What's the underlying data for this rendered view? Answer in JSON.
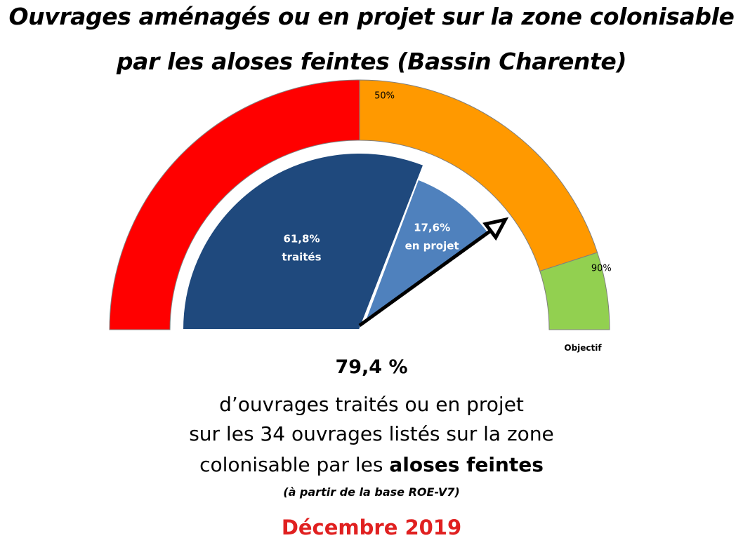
{
  "title_line1": "Ouvrages aménagés ou en projet sur la zone colonisable",
  "title_line2": "par les aloses feintes (Bassin Charente)",
  "chart_data": {
    "type": "gauge",
    "bands": [
      {
        "from": 0,
        "to": 50,
        "color": "#ff0000",
        "label": ""
      },
      {
        "from": 50,
        "to": 90,
        "color": "#ff9900",
        "label": "50%"
      },
      {
        "from": 90,
        "to": 100,
        "color": "#92d050",
        "label": "90%"
      }
    ],
    "slices": [
      {
        "value": 61.8,
        "label_pct": "61,8%",
        "label_name": "traités",
        "color": "#1f497d"
      },
      {
        "value": 17.6,
        "label_pct": "17,6%",
        "label_name": "en projet",
        "color": "#4f81bd"
      }
    ],
    "needle_value": 79.4,
    "objective_label": "Objectif",
    "range": [
      0,
      100
    ]
  },
  "summary": {
    "big_value": "79,4 %",
    "line1": "d’ouvrages traités ou en projet",
    "line2": "sur les 34 ouvrages listés sur la zone",
    "line3_plain": "colonisable par les ",
    "line3_bold": "aloses feintes",
    "source": "(à partir de la base ROE-V7)",
    "date": "Décembre 2019"
  },
  "colors": {
    "date": "#e02020",
    "needle": "#000000"
  }
}
